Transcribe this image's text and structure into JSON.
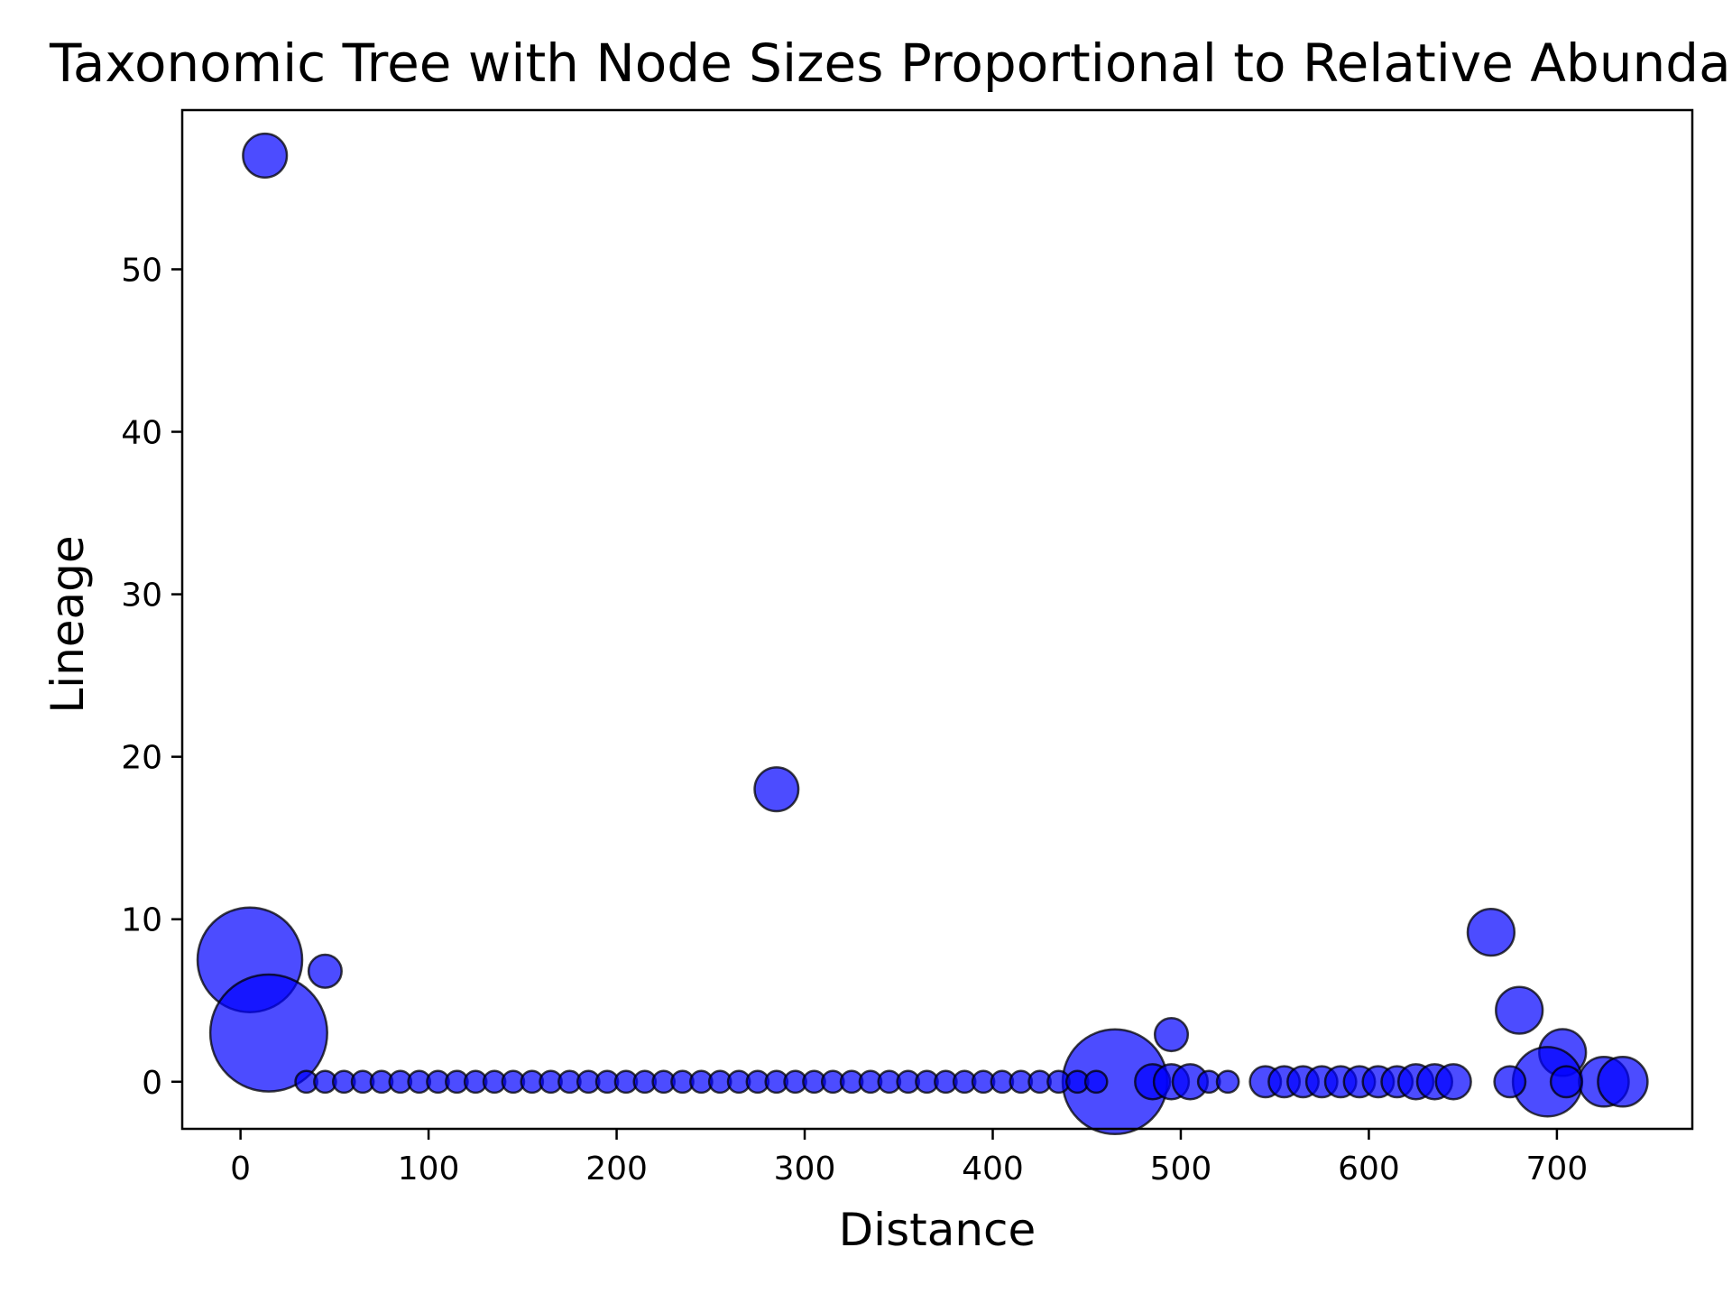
{
  "chart_data": {
    "type": "scatter",
    "title": "Taxonomic Tree with Node Sizes Proportional to Relative Abundance",
    "xlabel": "Distance",
    "ylabel": "Lineage",
    "xlim": [
      -31,
      772
    ],
    "ylim": [
      -2.9,
      59.8
    ],
    "xticks": [
      0,
      100,
      200,
      300,
      400,
      500,
      600,
      700
    ],
    "yticks": [
      0,
      10,
      20,
      30,
      40,
      50
    ],
    "grid": false,
    "marker_color": "#0000ff",
    "marker_edge_color": "#000000",
    "marker_alpha": 0.7,
    "points": [
      {
        "x": 13,
        "y": 57,
        "size": 140
      },
      {
        "x": 285,
        "y": 18,
        "size": 140
      },
      {
        "x": 5,
        "y": 7.5,
        "size": 800
      },
      {
        "x": 15,
        "y": 3,
        "size": 1000
      },
      {
        "x": 45,
        "y": 6.8,
        "size": 80
      },
      {
        "x": 495,
        "y": 2.9,
        "size": 80
      },
      {
        "x": 665,
        "y": 9.2,
        "size": 160
      },
      {
        "x": 680,
        "y": 4.4,
        "size": 160
      },
      {
        "x": 703,
        "y": 1.8,
        "size": 160
      },
      {
        "x": 465,
        "y": 0,
        "size": 800
      },
      {
        "x": 695,
        "y": 0,
        "size": 350
      },
      {
        "x": 725,
        "y": 0,
        "size": 180
      },
      {
        "x": 735,
        "y": 0,
        "size": 180
      },
      {
        "x": 35,
        "y": 0,
        "size": 35
      },
      {
        "x": 45,
        "y": 0,
        "size": 35
      },
      {
        "x": 55,
        "y": 0,
        "size": 35
      },
      {
        "x": 65,
        "y": 0,
        "size": 35
      },
      {
        "x": 75,
        "y": 0,
        "size": 35
      },
      {
        "x": 85,
        "y": 0,
        "size": 35
      },
      {
        "x": 95,
        "y": 0,
        "size": 35
      },
      {
        "x": 105,
        "y": 0,
        "size": 35
      },
      {
        "x": 115,
        "y": 0,
        "size": 35
      },
      {
        "x": 125,
        "y": 0,
        "size": 35
      },
      {
        "x": 135,
        "y": 0,
        "size": 35
      },
      {
        "x": 145,
        "y": 0,
        "size": 35
      },
      {
        "x": 155,
        "y": 0,
        "size": 35
      },
      {
        "x": 165,
        "y": 0,
        "size": 35
      },
      {
        "x": 175,
        "y": 0,
        "size": 35
      },
      {
        "x": 185,
        "y": 0,
        "size": 35
      },
      {
        "x": 195,
        "y": 0,
        "size": 35
      },
      {
        "x": 205,
        "y": 0,
        "size": 35
      },
      {
        "x": 215,
        "y": 0,
        "size": 35
      },
      {
        "x": 225,
        "y": 0,
        "size": 35
      },
      {
        "x": 235,
        "y": 0,
        "size": 35
      },
      {
        "x": 245,
        "y": 0,
        "size": 35
      },
      {
        "x": 255,
        "y": 0,
        "size": 35
      },
      {
        "x": 265,
        "y": 0,
        "size": 35
      },
      {
        "x": 275,
        "y": 0,
        "size": 35
      },
      {
        "x": 285,
        "y": 0,
        "size": 35
      },
      {
        "x": 295,
        "y": 0,
        "size": 35
      },
      {
        "x": 305,
        "y": 0,
        "size": 35
      },
      {
        "x": 315,
        "y": 0,
        "size": 35
      },
      {
        "x": 325,
        "y": 0,
        "size": 35
      },
      {
        "x": 335,
        "y": 0,
        "size": 35
      },
      {
        "x": 345,
        "y": 0,
        "size": 35
      },
      {
        "x": 355,
        "y": 0,
        "size": 35
      },
      {
        "x": 365,
        "y": 0,
        "size": 35
      },
      {
        "x": 375,
        "y": 0,
        "size": 35
      },
      {
        "x": 385,
        "y": 0,
        "size": 35
      },
      {
        "x": 395,
        "y": 0,
        "size": 35
      },
      {
        "x": 405,
        "y": 0,
        "size": 35
      },
      {
        "x": 415,
        "y": 0,
        "size": 35
      },
      {
        "x": 425,
        "y": 0,
        "size": 35
      },
      {
        "x": 435,
        "y": 0,
        "size": 35
      },
      {
        "x": 445,
        "y": 0,
        "size": 35
      },
      {
        "x": 455,
        "y": 0,
        "size": 35
      },
      {
        "x": 485,
        "y": 0,
        "size": 90
      },
      {
        "x": 495,
        "y": 0,
        "size": 90
      },
      {
        "x": 505,
        "y": 0,
        "size": 90
      },
      {
        "x": 515,
        "y": 0,
        "size": 35
      },
      {
        "x": 525,
        "y": 0,
        "size": 35
      },
      {
        "x": 545,
        "y": 0,
        "size": 70
      },
      {
        "x": 555,
        "y": 0,
        "size": 70
      },
      {
        "x": 565,
        "y": 0,
        "size": 70
      },
      {
        "x": 575,
        "y": 0,
        "size": 70
      },
      {
        "x": 585,
        "y": 0,
        "size": 70
      },
      {
        "x": 595,
        "y": 0,
        "size": 70
      },
      {
        "x": 605,
        "y": 0,
        "size": 70
      },
      {
        "x": 615,
        "y": 0,
        "size": 70
      },
      {
        "x": 625,
        "y": 0,
        "size": 90
      },
      {
        "x": 635,
        "y": 0,
        "size": 90
      },
      {
        "x": 645,
        "y": 0,
        "size": 90
      },
      {
        "x": 675,
        "y": 0,
        "size": 70
      },
      {
        "x": 705,
        "y": 0,
        "size": 70
      }
    ]
  }
}
